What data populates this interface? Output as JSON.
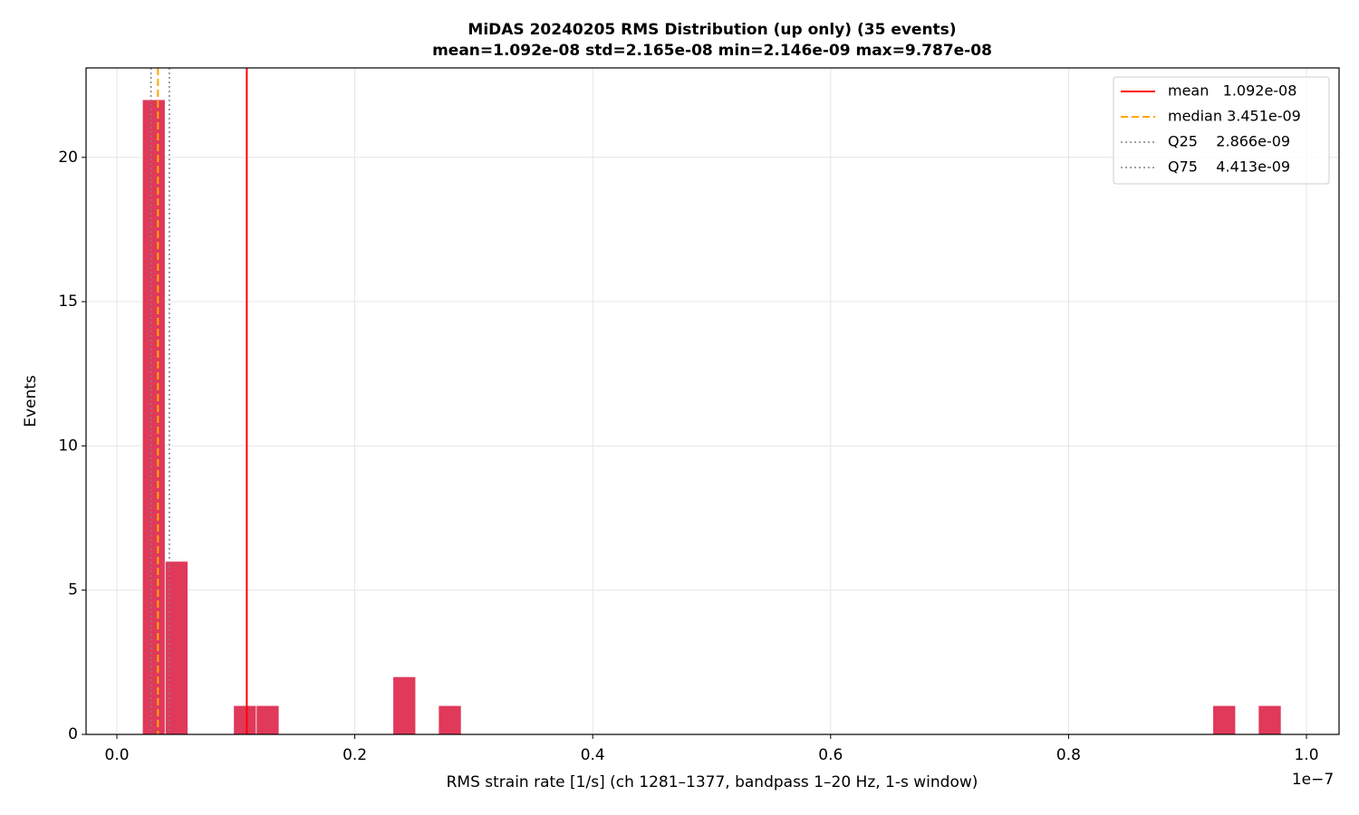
{
  "chart_data": {
    "type": "histogram",
    "title": "MiDAS 20240205  RMS Distribution  (up only)  (35 events)",
    "subtitle": "mean=1.092e-08  std=2.165e-08  min=2.146e-09  max=9.787e-08",
    "x_label": "RMS strain rate [1/s]  (ch 1281–1377, bandpass 1–20 Hz, 1-s window)",
    "x_offset_label": "1e−7",
    "y_label": "Events",
    "bins": [
      0.02146,
      0.040605,
      0.05975,
      0.078895,
      0.09804,
      0.117185,
      0.13633,
      0.155475,
      0.17462,
      0.193765,
      0.21291,
      0.232055,
      0.2512,
      0.270345,
      0.28949,
      0.308635,
      0.32778,
      0.346925,
      0.36607,
      0.385215,
      0.40436,
      0.423505,
      0.44265,
      0.461795,
      0.48094,
      0.500085,
      0.51923,
      0.538375,
      0.55752,
      0.576665,
      0.59581,
      0.614955,
      0.6341,
      0.653245,
      0.67239,
      0.691535,
      0.71068,
      0.729825,
      0.74897,
      0.768115,
      0.78726,
      0.806405,
      0.82555,
      0.844695,
      0.86384,
      0.882985,
      0.90213,
      0.921275,
      0.94042,
      0.959565,
      0.97871
    ],
    "values": [
      22,
      6,
      0,
      0,
      1,
      1,
      0,
      0,
      0,
      0,
      0,
      2,
      0,
      1,
      0,
      0,
      0,
      0,
      0,
      0,
      0,
      0,
      0,
      0,
      0,
      0,
      0,
      0,
      0,
      0,
      0,
      0,
      0,
      0,
      0,
      0,
      0,
      0,
      0,
      0,
      0,
      0,
      0,
      0,
      0,
      0,
      0,
      1,
      0,
      1
    ],
    "color": "#e0395a",
    "xlim": [
      -0.0259,
      1.0274
    ],
    "ylim": [
      0,
      23.1
    ],
    "xticks": [
      {
        "value": 0,
        "label": "0.0"
      },
      0.2,
      0.4,
      0.6,
      0.8,
      {
        "value": 1,
        "label": "1.0"
      }
    ],
    "yticks": [
      0,
      5,
      10,
      15,
      20
    ],
    "grid": true,
    "legend": "upper right",
    "reference_lines": [
      {
        "name": "mean   1.092e-08",
        "value": 0.1092,
        "color": "#ff0000",
        "style": "solid"
      },
      {
        "name": "median 3.451e-09",
        "value": 0.03451,
        "color": "#ffa500",
        "style": "dashed"
      },
      {
        "name": "Q25    2.866e-09",
        "value": 0.02866,
        "color": "#808080",
        "style": "dotted"
      },
      {
        "name": "Q75    4.413e-09",
        "value": 0.04413,
        "color": "#808080",
        "style": "dotted"
      }
    ]
  }
}
